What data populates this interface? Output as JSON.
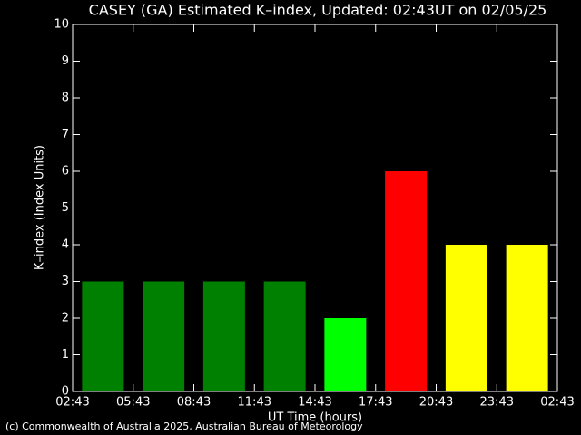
{
  "chart_data": {
    "type": "bar",
    "title": "CASEY (GA) Estimated K–index, Updated: 02:43UT on 02/05/25",
    "y_label": "K–index (Index Units)",
    "x_label": "UT Time (hours)",
    "footer": "(c) Commonwealth of Australia 2025, Australian Bureau of Meteorology",
    "xtick_labels": [
      "02:43",
      "05:43",
      "08:43",
      "11:43",
      "14:43",
      "17:43",
      "20:43",
      "23:43",
      "02:43"
    ],
    "values": [
      3,
      3,
      3,
      3,
      2,
      6,
      4,
      4
    ],
    "colors": [
      "#008000",
      "#008000",
      "#008000",
      "#008000",
      "#00ff00",
      "#ff0000",
      "#ffff00",
      "#ffff00"
    ],
    "ylim": [
      0,
      10
    ],
    "yticks": [
      0,
      1,
      2,
      3,
      4,
      5,
      6,
      7,
      8,
      9,
      10
    ]
  }
}
